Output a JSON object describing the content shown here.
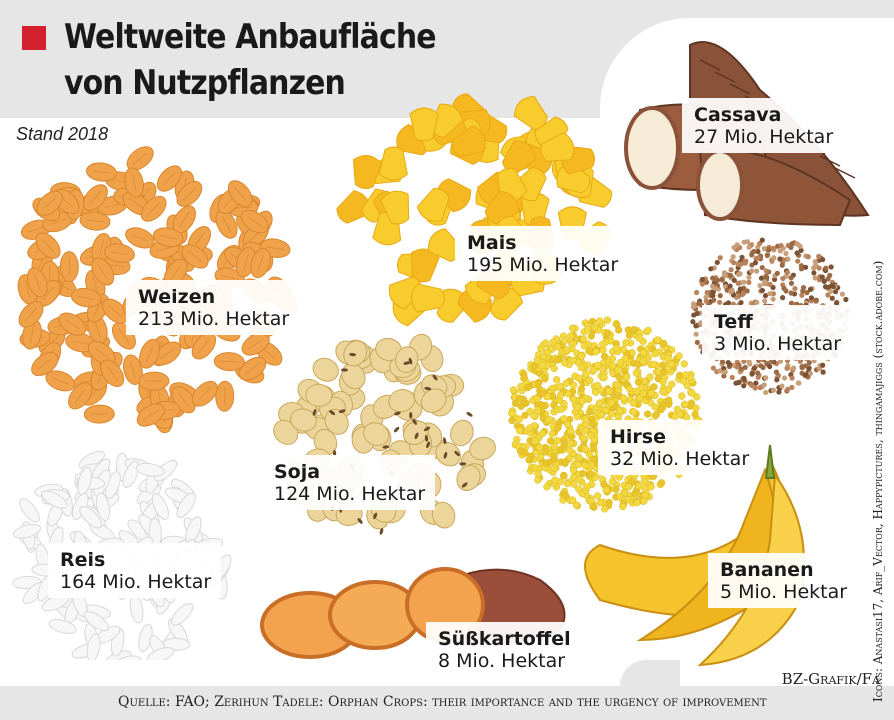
{
  "header": {
    "title_line1": "Weltweite Anbaufläche",
    "title_line2": "von Nutzpflanzen",
    "subtitle": "Stand 2018"
  },
  "chart_data": {
    "type": "pictorial",
    "title": "Weltweite Anbaufläche von Nutzpflanzen",
    "subtitle": "Stand 2018",
    "unit": "Mio. Hektar",
    "items": [
      {
        "name": "Weizen",
        "value": 213,
        "label": "213 Mio. Hektar"
      },
      {
        "name": "Mais",
        "value": 195,
        "label": "195 Mio. Hektar"
      },
      {
        "name": "Reis",
        "value": 164,
        "label": "164 Mio. Hektar"
      },
      {
        "name": "Soja",
        "value": 124,
        "label": "124 Mio. Hektar"
      },
      {
        "name": "Hirse",
        "value": 32,
        "label": "32 Mio. Hektar"
      },
      {
        "name": "Cassava",
        "value": 27,
        "label": "27 Mio. Hektar"
      },
      {
        "name": "Süßkartoffel",
        "value": 8,
        "label": "8 Mio. Hektar"
      },
      {
        "name": "Bananen",
        "value": 5,
        "label": "5 Mio. Hektar"
      },
      {
        "name": "Teff",
        "value": 3,
        "label": "3 Mio. Hektar"
      }
    ]
  },
  "colors": {
    "accent": "#d4212e",
    "wheat": "#f0a24a",
    "corn": "#f7cc2c",
    "rice": "#f2f2f2",
    "soy": "#ecd59a",
    "millet": "#f3d93f",
    "teff": "#9a6a45",
    "cassava": "#8a5238",
    "sweetpotato": "#f3a24d",
    "banana": "#f5c42c"
  },
  "credits": "Icons: Anastasi17, Arif_Vector, Happypictures, thingamajiggs (stock.adobe.com)",
  "footer": {
    "agency": "BZ-Grafik/Fa",
    "source": "Quelle: FAO; Zerihun Tadele: Orphan Crops: their importance and the urgency of improvement"
  }
}
